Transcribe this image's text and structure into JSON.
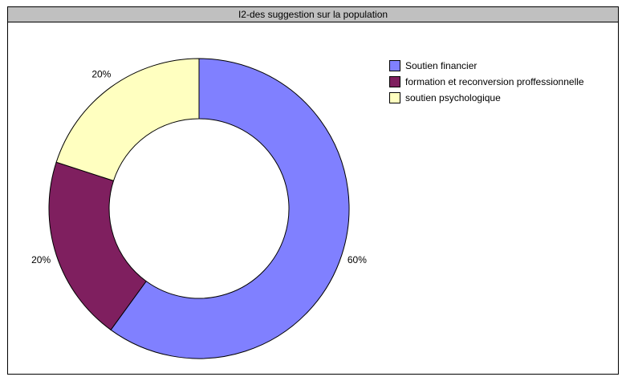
{
  "chart_data": {
    "type": "pie",
    "title": "I2-des suggestion sur la population",
    "categories": [
      "Soutien financier",
      "formation et reconversion proffessionnelle",
      "soutien psychologique"
    ],
    "values": [
      60,
      20,
      20
    ],
    "labels": [
      "60%",
      "20%",
      "20%"
    ],
    "colors": [
      "#8080ff",
      "#7f1f5f",
      "#ffffc0"
    ],
    "legend": "right"
  }
}
